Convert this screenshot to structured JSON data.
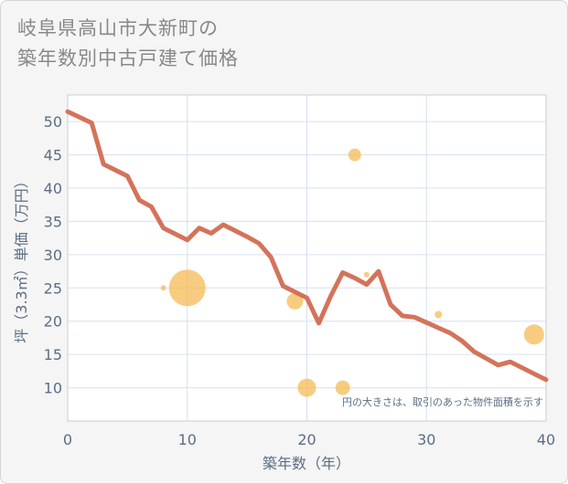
{
  "title_line1": "岐阜県高山市大新町の",
  "title_line2": "築年数別中古戸建て価格",
  "chart_data": {
    "type": "scatter+line",
    "xlabel": "築年数（年）",
    "ylabel": "坪（3.3㎡）単価（万円）",
    "xlim": [
      0,
      40
    ],
    "ylim": [
      5,
      54
    ],
    "xticks": [
      0,
      10,
      20,
      30,
      40
    ],
    "yticks": [
      10,
      15,
      20,
      25,
      30,
      35,
      40,
      45,
      50
    ],
    "grid": true,
    "note": "円の大きさは、取引のあった物件面積を示す",
    "colors": {
      "line": "#d4735a",
      "bubble": "#f5b94f"
    },
    "line": {
      "x": [
        0,
        2,
        3,
        5,
        6,
        7,
        8,
        10,
        11,
        12,
        13,
        14,
        15,
        16,
        17,
        18,
        20,
        21,
        22,
        23,
        24,
        25,
        26,
        27,
        28,
        29,
        30,
        31,
        32,
        33,
        34,
        35,
        36,
        37,
        38,
        39,
        40
      ],
      "y": [
        51.5,
        49.8,
        43.6,
        41.8,
        38.2,
        37.2,
        34.0,
        32.2,
        34.0,
        33.2,
        34.5,
        33.6,
        32.7,
        31.7,
        29.6,
        25.3,
        23.5,
        19.7,
        23.8,
        27.3,
        26.5,
        25.5,
        27.5,
        22.5,
        20.8,
        20.6,
        19.8,
        19.0,
        18.2,
        17.0,
        15.4,
        14.4,
        13.4,
        13.9,
        13.0,
        12.1,
        11.2
      ]
    },
    "bubbles": [
      {
        "x": 8,
        "y": 25,
        "size": 3
      },
      {
        "x": 10,
        "y": 25,
        "size": 20
      },
      {
        "x": 19,
        "y": 23,
        "size": 9
      },
      {
        "x": 20,
        "y": 10,
        "size": 10
      },
      {
        "x": 23,
        "y": 10,
        "size": 8
      },
      {
        "x": 24,
        "y": 45,
        "size": 7
      },
      {
        "x": 25,
        "y": 27,
        "size": 3
      },
      {
        "x": 31,
        "y": 21,
        "size": 4
      },
      {
        "x": 39,
        "y": 18,
        "size": 11
      }
    ]
  }
}
